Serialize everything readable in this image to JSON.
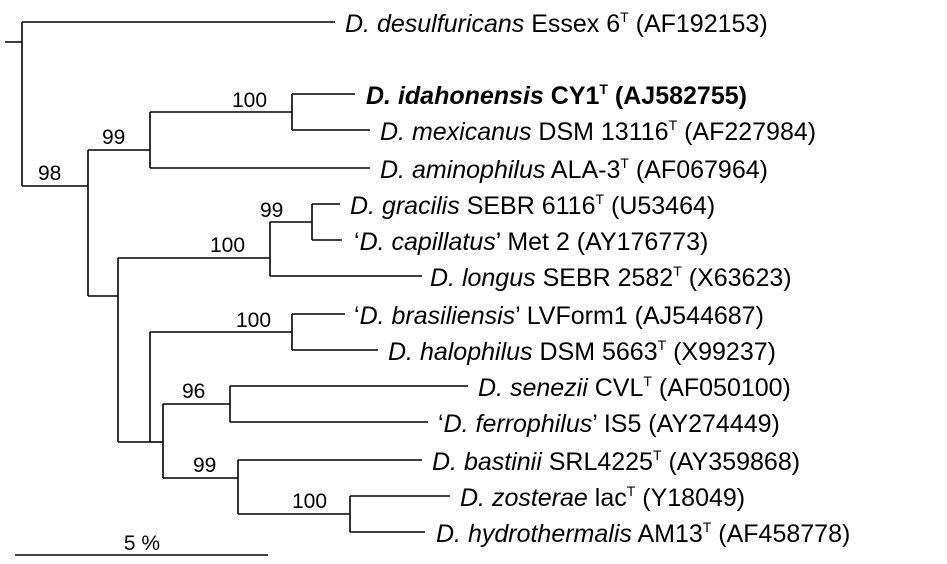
{
  "taxa": [
    {
      "id": "desulfuricans",
      "species": "D. desulfuricans",
      "strain": "Essex 6",
      "type_strain": true,
      "accession": "(AF192153)",
      "bold": false,
      "quoted": false
    },
    {
      "id": "idahonensis",
      "species": "D. idahonensis",
      "strain": "CY1",
      "type_strain": true,
      "accession": "(AJ582755)",
      "bold": true,
      "quoted": false
    },
    {
      "id": "mexicanus",
      "species": "D. mexicanus",
      "strain": "DSM 13116",
      "type_strain": true,
      "accession": "(AF227984)",
      "bold": false,
      "quoted": false
    },
    {
      "id": "aminophilus",
      "species": "D. aminophilus",
      "strain": "ALA-3",
      "type_strain": true,
      "accession": "(AF067964)",
      "bold": false,
      "quoted": false
    },
    {
      "id": "gracilis",
      "species": "D. gracilis",
      "strain": "SEBR 6116",
      "type_strain": true,
      "accession": "(U53464)",
      "bold": false,
      "quoted": false
    },
    {
      "id": "capillatus",
      "species": "D. capillatus",
      "strain": "Met 2",
      "type_strain": false,
      "accession": "(AY176773)",
      "bold": false,
      "quoted": true
    },
    {
      "id": "longus",
      "species": "D. longus",
      "strain": "SEBR 2582",
      "type_strain": true,
      "accession": "(X63623)",
      "bold": false,
      "quoted": false
    },
    {
      "id": "brasiliensis",
      "species": "D. brasiliensis",
      "strain": "LVForm1",
      "type_strain": false,
      "accession": "(AJ544687)",
      "bold": false,
      "quoted": true
    },
    {
      "id": "halophilus",
      "species": "D. halophilus",
      "strain": "DSM 5663",
      "type_strain": true,
      "accession": "(X99237)",
      "bold": false,
      "quoted": false
    },
    {
      "id": "senezii",
      "species": "D. senezii",
      "strain": "CVL",
      "type_strain": true,
      "accession": "(AF050100)",
      "bold": false,
      "quoted": false
    },
    {
      "id": "ferrophilus",
      "species": "D. ferrophilus",
      "strain": "IS5",
      "type_strain": false,
      "accession": "(AY274449)",
      "bold": false,
      "quoted": true
    },
    {
      "id": "bastinii",
      "species": "D. bastinii",
      "strain": "SRL4225",
      "type_strain": true,
      "accession": "(AY359868)",
      "bold": false,
      "quoted": false
    },
    {
      "id": "zosterae",
      "species": "D. zosterae",
      "strain": "lac",
      "type_strain": true,
      "accession": "(Y18049)",
      "bold": false,
      "quoted": false
    },
    {
      "id": "hydrothermalis",
      "species": "D. hydrothermalis",
      "strain": "AM13",
      "type_strain": true,
      "accession": "(AF458778)",
      "bold": false,
      "quoted": false
    }
  ],
  "type_superscript": "T",
  "quote_open": "‘",
  "quote_close": "’",
  "bootstrap": {
    "idahonensis_mexicanus": "100",
    "idahonensis_aminophilus": "99",
    "ingroup": "98",
    "gracilis_capillatus": "99",
    "gracilis_longus": "100",
    "brasiliensis_halophilus": "100",
    "senezii_ferrophilus": "96",
    "senezii_hydrothermalis": "99",
    "zosterae_hydrothermalis": "100"
  },
  "scale_bar": {
    "label": "5 %"
  }
}
